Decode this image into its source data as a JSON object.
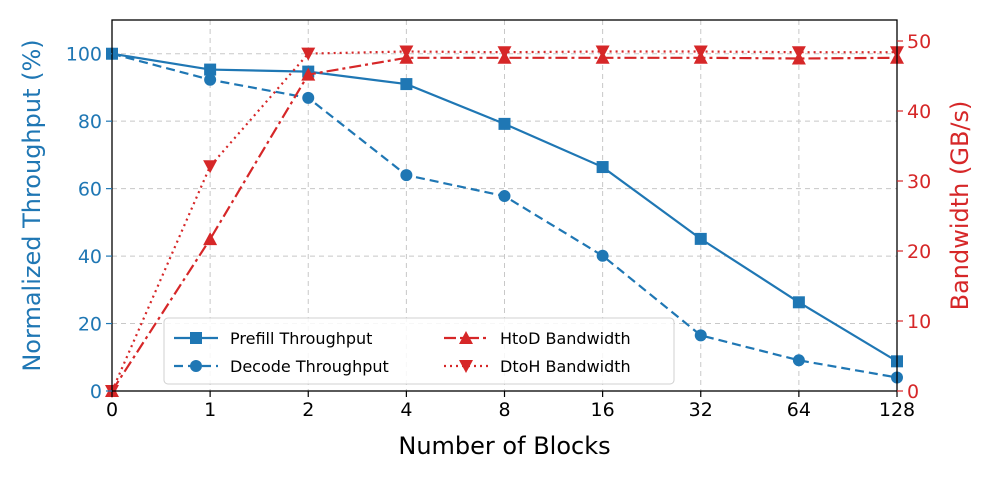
{
  "chart_data": {
    "type": "line",
    "title": "",
    "xlabel": "Number of Blocks",
    "ylabel_left": "Normalized Throughput (%)",
    "ylabel_right": "Bandwidth (GB/s)",
    "x": [
      "0",
      "1",
      "2",
      "4",
      "8",
      "16",
      "32",
      "64",
      "128"
    ],
    "ylim_left": [
      0,
      110
    ],
    "ylim_right": [
      0,
      53
    ],
    "yticks_left": [
      0,
      20,
      40,
      60,
      80,
      100
    ],
    "yticks_right": [
      0,
      10,
      20,
      30,
      40,
      50
    ],
    "grid": true,
    "legend_position": "bottom-center",
    "colors": {
      "left_series": "#1f77b4",
      "right_series": "#d62728"
    },
    "series": [
      {
        "name": "Prefill Throughput",
        "axis": "left",
        "style": "solid",
        "marker": "square",
        "values": [
          100,
          95.3,
          94.7,
          91,
          79.2,
          66.4,
          45.1,
          26.3,
          8.8
        ]
      },
      {
        "name": "Decode Throughput",
        "axis": "left",
        "style": "dashed",
        "marker": "circle",
        "values": [
          100,
          92.3,
          86.9,
          64,
          57.8,
          40.1,
          16.5,
          9.1,
          4
        ]
      },
      {
        "name": "HtoD Bandwidth",
        "axis": "right",
        "style": "dashdot",
        "marker": "triangle-up",
        "values": [
          0,
          21.7,
          45.2,
          47.6,
          47.6,
          47.6,
          47.6,
          47.5,
          47.6
        ]
      },
      {
        "name": "DtoH Bandwidth",
        "axis": "right",
        "style": "dotted",
        "marker": "triangle-down",
        "values": [
          0,
          32.1,
          48.2,
          48.5,
          48.4,
          48.5,
          48.5,
          48.4,
          48.4
        ]
      }
    ]
  }
}
